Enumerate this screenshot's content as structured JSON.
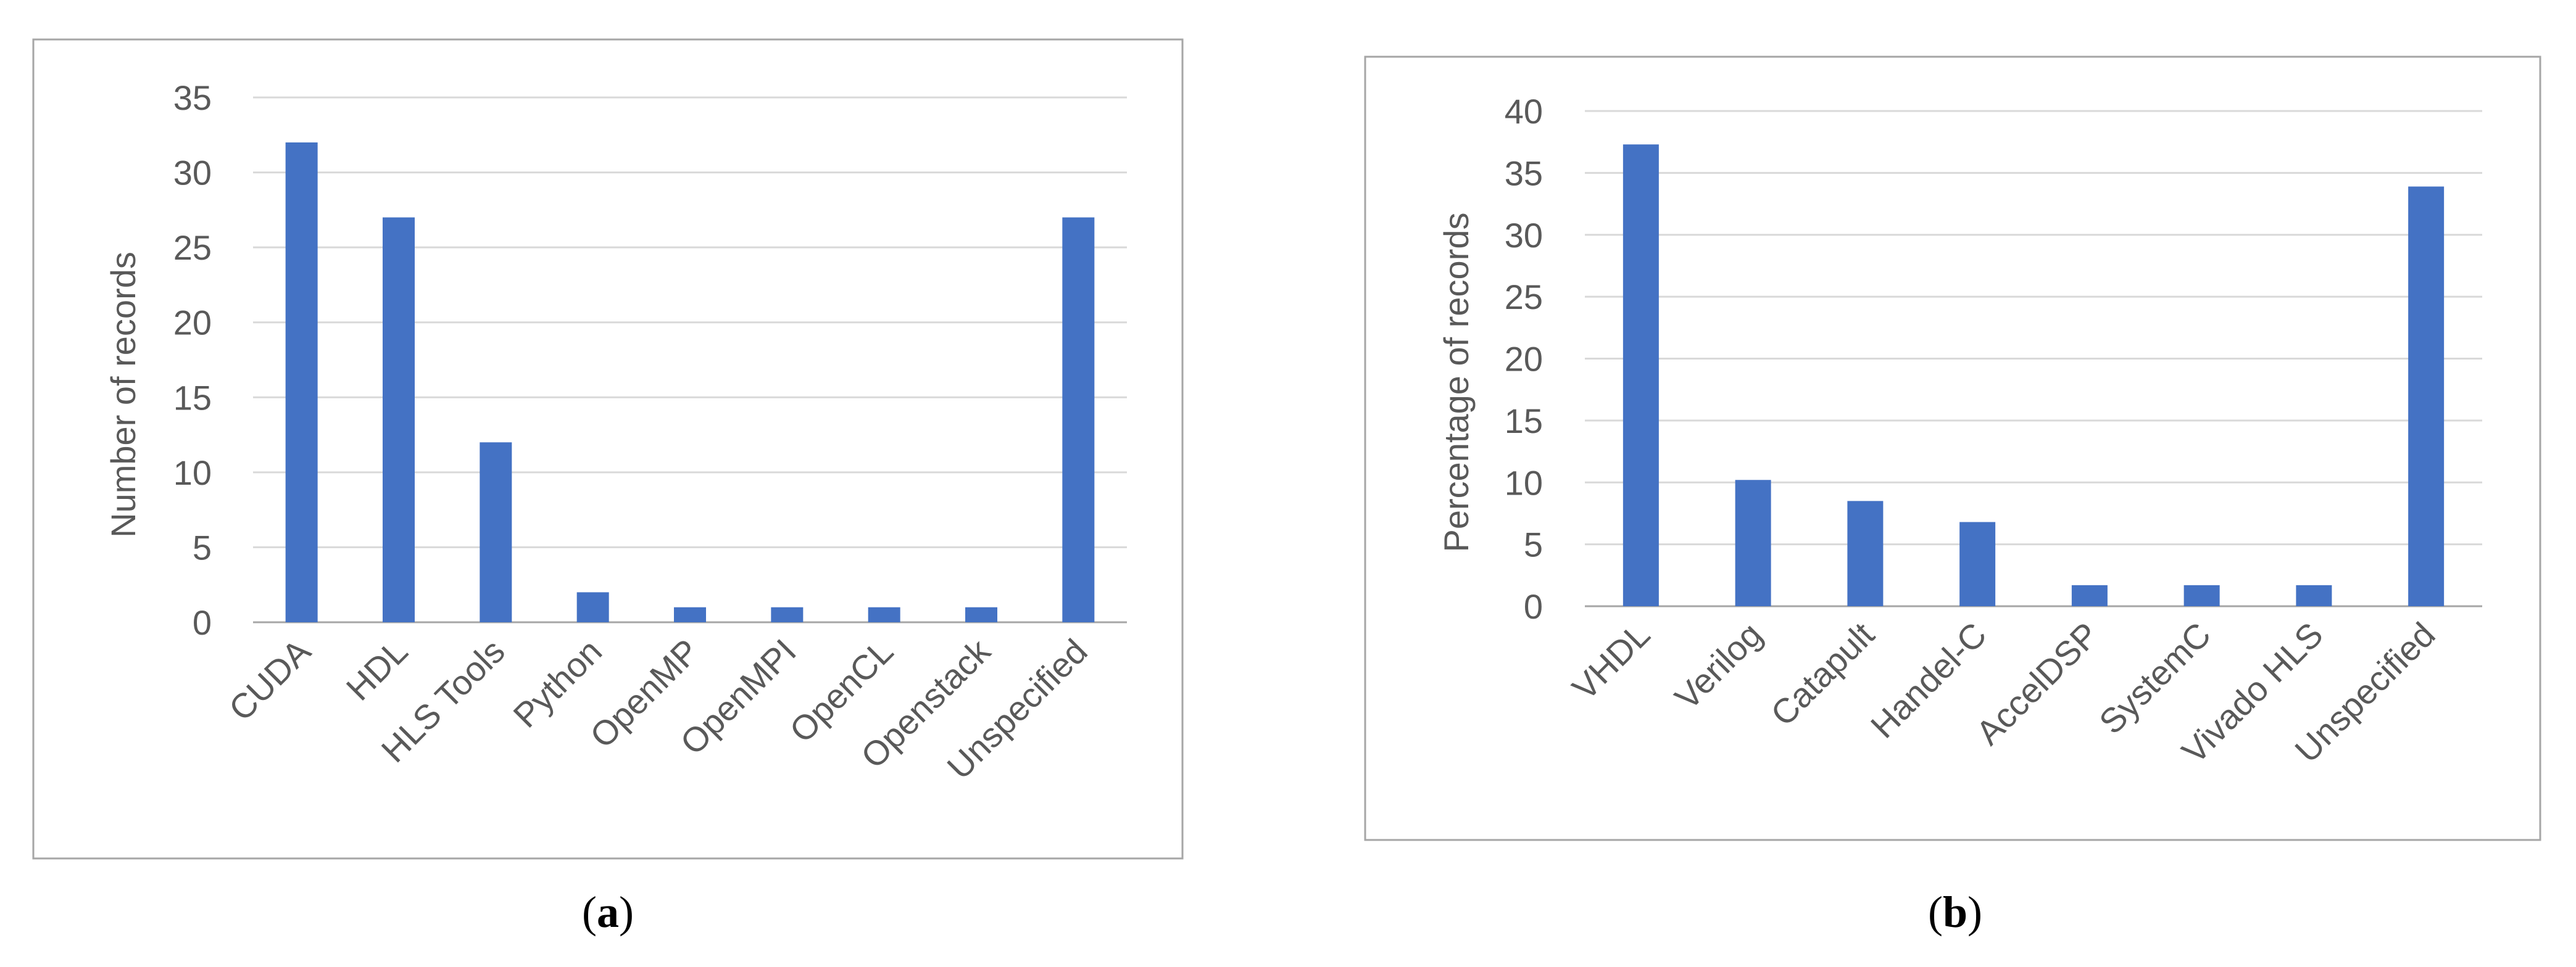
{
  "colors": {
    "bar": "#4472C4",
    "grid": "#D9D9D9",
    "frame": "#A6A6A6",
    "text": "#595959"
  },
  "chart_data": [
    {
      "type": "bar",
      "title": "",
      "xlabel": "",
      "ylabel": "Number of records",
      "ylim": [
        0,
        35
      ],
      "yticks": [
        0,
        5,
        10,
        15,
        20,
        25,
        30,
        35
      ],
      "grid": true,
      "categories": [
        "CUDA",
        "HDL",
        "HLS Tools",
        "Python",
        "OpenMP",
        "OpenMPI",
        "OpenCL",
        "Openstack",
        "Unspecified"
      ],
      "values": [
        32,
        27,
        12,
        2,
        1,
        1,
        1,
        1,
        27
      ],
      "caption_letter": "a"
    },
    {
      "type": "bar",
      "title": "",
      "xlabel": "",
      "ylabel": "Percentage of records",
      "ylim": [
        0,
        40
      ],
      "yticks": [
        0,
        5,
        10,
        15,
        20,
        25,
        30,
        35,
        40
      ],
      "grid": true,
      "categories": [
        "VHDL",
        "Verilog",
        "Catapult",
        "Handel-C",
        "AccelDSP",
        "SystemC",
        "Vivado HLS",
        "Unspecified"
      ],
      "values": [
        37.3,
        10.2,
        8.5,
        6.8,
        1.7,
        1.7,
        1.7,
        33.9
      ],
      "caption_letter": "b"
    }
  ]
}
